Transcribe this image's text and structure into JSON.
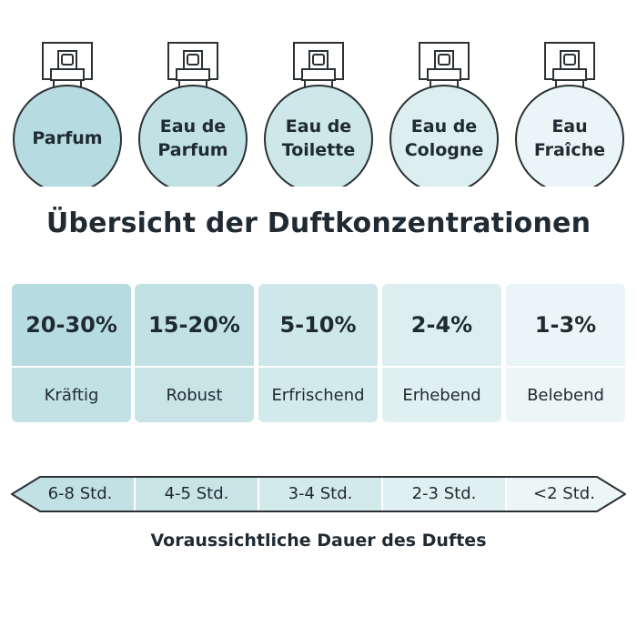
{
  "bottles": [
    {
      "label": "Parfum",
      "fill": "#b6dbe0"
    },
    {
      "label": "Eau de\nParfum",
      "fill": "#c1e1e5"
    },
    {
      "label": "Eau de\nToilette",
      "fill": "#cde7ea"
    },
    {
      "label": "Eau de\nCologne",
      "fill": "#dceef0"
    },
    {
      "label": "Eau\nFraîche",
      "fill": "#e9f5f6"
    }
  ],
  "title": "Übersicht der Duftkonzentrationen",
  "concentrations": [
    {
      "percent": "20-30%",
      "character": "Kräftig",
      "top": "#b6dbe0",
      "bottom": "#c1e1e5"
    },
    {
      "percent": "15-20%",
      "character": "Robust",
      "top": "#c1e1e5",
      "bottom": "#c9e4e7"
    },
    {
      "percent": "5-10%",
      "character": "Erfrischend",
      "top": "#cde7ea",
      "bottom": "#d3eaec"
    },
    {
      "percent": "2-4%",
      "character": "Erhebend",
      "top": "#dceef0",
      "bottom": "#e0f0f1"
    },
    {
      "percent": "1-3%",
      "character": "Belebend",
      "top": "#e9f5f6",
      "bottom": "#ecf6f7"
    }
  ],
  "durations": [
    {
      "label": "6-8 Std.",
      "fill": "#c1e1e5"
    },
    {
      "label": "4-5 Std.",
      "fill": "#c9e4e7"
    },
    {
      "label": "3-4 Std.",
      "fill": "#d3eaec"
    },
    {
      "label": "2-3 Std.",
      "fill": "#e0f0f1"
    },
    {
      "label": "<2 Std.",
      "fill": "#ecf6f7"
    }
  ],
  "duration_caption": "Voraussichtliche Dauer des Duftes",
  "colors": {
    "outline": "#2b3135",
    "text": "#1f2a33"
  }
}
